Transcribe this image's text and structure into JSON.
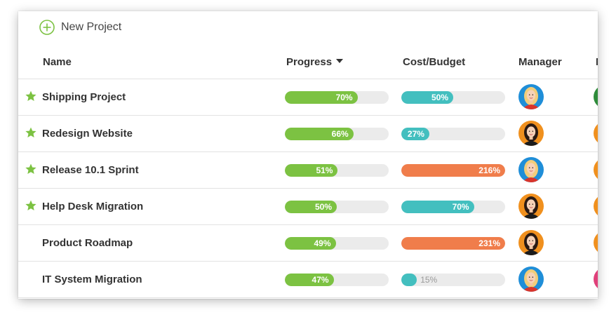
{
  "toolbar": {
    "new_project_label": "New Project"
  },
  "columns": {
    "name": "Name",
    "progress": "Progress",
    "cost_budget": "Cost/Budget",
    "manager": "Manager",
    "next_partial": "N"
  },
  "colors": {
    "progress": "#7cc242",
    "cost_ok": "#43bfbf",
    "cost_over": "#f07d4b",
    "star": "#7cc242",
    "blonde_bg": "#1f8ed8",
    "brunette_bg": "#f0901e"
  },
  "projects": [
    {
      "name": "Shipping Project",
      "starred": true,
      "progress": 70,
      "progress_label": "70%",
      "cost": 50,
      "cost_label": "50%",
      "cost_status": "ok",
      "manager_icon": "blonde-avatar-icon",
      "next_color": "#2e8b3a"
    },
    {
      "name": "Redesign Website",
      "starred": true,
      "progress": 66,
      "progress_label": "66%",
      "cost": 27,
      "cost_label": "27%",
      "cost_status": "ok",
      "manager_icon": "brunette-avatar-icon",
      "next_color": "#f0901e"
    },
    {
      "name": "Release 10.1 Sprint",
      "starred": true,
      "progress": 51,
      "progress_label": "51%",
      "cost": 216,
      "cost_label": "216%",
      "cost_status": "over",
      "manager_icon": "blonde-avatar-icon",
      "next_color": "#f0901e"
    },
    {
      "name": "Help Desk Migration",
      "starred": true,
      "progress": 50,
      "progress_label": "50%",
      "cost": 70,
      "cost_label": "70%",
      "cost_status": "ok",
      "manager_icon": "brunette-avatar-icon",
      "next_color": "#f0901e"
    },
    {
      "name": "Product Roadmap",
      "starred": false,
      "progress": 49,
      "progress_label": "49%",
      "cost": 231,
      "cost_label": "231%",
      "cost_status": "over",
      "manager_icon": "brunette-avatar-icon",
      "next_color": "#f0901e"
    },
    {
      "name": "IT System Migration",
      "starred": false,
      "progress": 47,
      "progress_label": "47%",
      "cost": 15,
      "cost_label": "15%",
      "cost_status": "ok",
      "manager_icon": "blonde-avatar-icon",
      "next_color": "#e0407a"
    }
  ]
}
